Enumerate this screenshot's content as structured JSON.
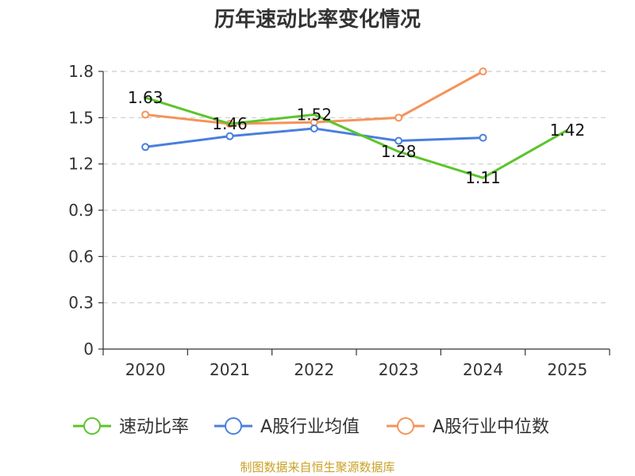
{
  "chart_data": {
    "type": "line",
    "title": "历年速动比率变化情况",
    "categories": [
      "2020",
      "2021",
      "2022",
      "2023",
      "2024",
      "2025"
    ],
    "ylim": [
      0,
      1.8
    ],
    "yticks": [
      "0",
      "0.3",
      "0.6",
      "0.9",
      "1.2",
      "1.5",
      "1.8"
    ],
    "ytick_values": [
      0,
      0.3,
      0.6,
      0.9,
      1.2,
      1.5,
      1.8
    ],
    "grid": true,
    "legend_position": "bottom",
    "series": [
      {
        "name": "速动比率",
        "color": "#5cc42c",
        "values": [
          1.63,
          1.46,
          1.52,
          1.28,
          1.11,
          1.42
        ],
        "labels": [
          "1.63",
          "1.46",
          "1.52",
          "1.28",
          "1.11",
          "1.42"
        ],
        "show_markers": false
      },
      {
        "name": "A股行业均值",
        "color": "#4a7fdc",
        "values": [
          1.31,
          1.38,
          1.43,
          1.35,
          1.37,
          null
        ],
        "show_markers": true
      },
      {
        "name": "A股行业中位数",
        "color": "#f5935a",
        "values": [
          1.52,
          1.46,
          1.47,
          1.5,
          1.8,
          null
        ],
        "show_markers": true
      }
    ]
  },
  "source_text": "制图数据来自恒生聚源数据库"
}
